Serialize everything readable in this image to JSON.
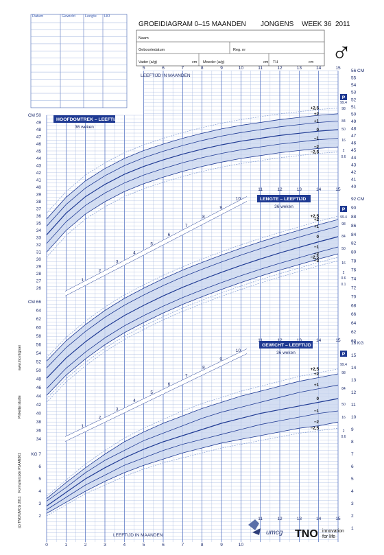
{
  "header": {
    "title": "GROEIDIAGRAM 0–15 MAANDEN",
    "gender": "JONGENS",
    "week": "WEEK 36",
    "year": "2011",
    "gender_symbol": "♂"
  },
  "record_table": {
    "columns": [
      "Datum",
      "Gewicht",
      "Lengte",
      "HO"
    ],
    "rows": 12
  },
  "form": {
    "name_label": "Naam",
    "dob_label": "Geboortedatum",
    "reg_label": "Reg. nr",
    "father_label": "Vader (a/g)",
    "mother_label": "Moeder (a/g)",
    "th_label": "TH",
    "cm_unit": "cm"
  },
  "age_axis_top_label": "LEEFTIJD IN MAANDEN",
  "age_axis_bottom_label": "LEEFTIJD IN MAANDEN",
  "side_texts": {
    "copyright": "(c) TNO/UMCG 2011",
    "formcode": "Formuliercode PJAAN361",
    "study": "Pinkeltje studie",
    "url": "www.tno.nl/groei"
  },
  "logos": {
    "umcg": "umcg",
    "tno": "TNO",
    "tno_tag1": "innovation",
    "tno_tag2": "for life"
  },
  "chart_data": [
    {
      "type": "line",
      "title": "HOOFDOMTREK – LEEFTIJD",
      "subtitle": "36 weken",
      "ylabel": "CM",
      "xlim": [
        0,
        15
      ],
      "ylim": [
        26,
        50
      ],
      "yticks_left": [
        27,
        28,
        29,
        30,
        31,
        32,
        33,
        34,
        35,
        36,
        37,
        38,
        39,
        40,
        41,
        42,
        43,
        44,
        45,
        46,
        47,
        48,
        49,
        50
      ],
      "x": [
        0,
        1,
        2,
        3,
        4,
        5,
        6,
        7,
        8,
        9,
        10,
        11,
        12,
        13,
        14,
        15
      ],
      "series": [
        {
          "sd": "+2,5",
          "values": [
            36.4,
            39.4,
            41.7,
            43.4,
            44.8,
            45.9,
            46.8,
            47.6,
            48.3,
            48.9,
            49.4,
            49.8,
            50.2,
            50.5,
            50.8,
            51.0
          ]
        },
        {
          "sd": "+2",
          "values": [
            35.6,
            38.6,
            40.9,
            42.6,
            44.0,
            45.1,
            46.0,
            46.8,
            47.5,
            48.1,
            48.6,
            49.0,
            49.4,
            49.7,
            50.0,
            50.2
          ]
        },
        {
          "sd": "+1",
          "values": [
            34.6,
            37.6,
            39.9,
            41.6,
            43.0,
            44.1,
            45.0,
            45.8,
            46.5,
            47.1,
            47.6,
            48.0,
            48.4,
            48.7,
            49.0,
            49.2
          ]
        },
        {
          "sd": "0",
          "values": [
            33.4,
            36.4,
            38.7,
            40.4,
            41.8,
            42.9,
            43.8,
            44.6,
            45.3,
            45.9,
            46.4,
            46.8,
            47.2,
            47.5,
            47.8,
            48.0
          ]
        },
        {
          "sd": "−1",
          "values": [
            32.2,
            35.2,
            37.5,
            39.2,
            40.6,
            41.7,
            42.6,
            43.4,
            44.1,
            44.7,
            45.2,
            45.6,
            46.0,
            46.3,
            46.6,
            46.8
          ]
        },
        {
          "sd": "−2",
          "values": [
            31.0,
            34.0,
            36.3,
            38.0,
            39.4,
            40.5,
            41.4,
            42.2,
            42.9,
            43.5,
            44.0,
            44.4,
            44.8,
            45.1,
            45.4,
            45.6
          ]
        },
        {
          "sd": "−2,5",
          "values": [
            30.3,
            33.3,
            35.6,
            37.3,
            38.7,
            39.8,
            40.7,
            41.5,
            42.2,
            42.8,
            43.3,
            43.7,
            44.1,
            44.4,
            44.7,
            44.9
          ]
        }
      ]
    },
    {
      "type": "line",
      "title": "LENGTE – LEEFTIJD",
      "subtitle": "36 weken",
      "ylabel": "CM",
      "xlim": [
        0,
        15
      ],
      "ylim": [
        40,
        92
      ],
      "x": [
        0,
        1,
        2,
        3,
        4,
        5,
        6,
        7,
        8,
        9,
        10,
        11,
        12,
        13,
        14,
        15
      ],
      "series": [
        {
          "sd": "+2,5",
          "values": [
            53.0,
            57.7,
            61.5,
            64.8,
            67.6,
            70.0,
            72.2,
            74.2,
            76.0,
            77.7,
            79.3,
            80.8,
            82.2,
            83.5,
            84.8,
            86.0
          ]
        },
        {
          "sd": "+2",
          "values": [
            52.2,
            56.9,
            60.7,
            64.0,
            66.8,
            69.2,
            71.4,
            73.4,
            75.2,
            76.9,
            78.5,
            80.0,
            81.4,
            82.7,
            84.0,
            85.2
          ]
        },
        {
          "sd": "+1",
          "values": [
            50.6,
            55.3,
            59.1,
            62.4,
            65.2,
            67.6,
            69.8,
            71.8,
            73.6,
            75.3,
            76.9,
            78.4,
            79.8,
            81.1,
            82.4,
            83.6
          ]
        },
        {
          "sd": "0",
          "values": [
            48.2,
            52.9,
            56.7,
            60.0,
            62.8,
            65.2,
            67.4,
            69.4,
            71.2,
            72.9,
            74.5,
            76.0,
            77.4,
            78.7,
            80.0,
            81.2
          ]
        },
        {
          "sd": "−1",
          "values": [
            45.8,
            50.5,
            54.3,
            57.6,
            60.4,
            62.8,
            65.0,
            67.0,
            68.8,
            70.5,
            72.1,
            73.6,
            75.0,
            76.3,
            77.6,
            78.8
          ]
        },
        {
          "sd": "−2",
          "values": [
            44.2,
            48.9,
            52.7,
            56.0,
            58.8,
            61.2,
            63.4,
            65.4,
            67.2,
            68.9,
            70.5,
            72.0,
            73.4,
            74.7,
            76.0,
            77.2
          ]
        },
        {
          "sd": "−2,5",
          "values": [
            43.4,
            48.1,
            51.9,
            55.2,
            58.0,
            60.4,
            62.6,
            64.6,
            66.4,
            68.1,
            69.7,
            71.2,
            72.6,
            73.9,
            75.2,
            76.4
          ]
        },
        {
          "sd": "−3",
          "values": [
            42.6,
            47.3,
            51.1,
            54.4,
            57.2,
            59.6,
            61.8,
            63.8,
            65.6,
            67.3,
            68.9,
            70.4,
            71.8,
            73.1,
            74.4,
            75.6
          ]
        }
      ]
    },
    {
      "type": "line",
      "title": "GEWICHT – LEEFTIJD",
      "subtitle": "36 weken",
      "ylabel": "KG",
      "xlim": [
        0,
        15
      ],
      "ylim": [
        1,
        16
      ],
      "x": [
        0,
        1,
        2,
        3,
        4,
        5,
        6,
        7,
        8,
        9,
        10,
        11,
        12,
        13,
        14,
        15
      ],
      "series": [
        {
          "sd": "+2,5",
          "values": [
            3.6,
            4.9,
            6.2,
            7.3,
            8.3,
            9.1,
            9.8,
            10.5,
            11.1,
            11.6,
            12.1,
            12.5,
            12.9,
            13.3,
            13.6,
            13.9
          ]
        },
        {
          "sd": "+2",
          "values": [
            3.4,
            4.7,
            5.9,
            7.0,
            8.0,
            8.8,
            9.5,
            10.1,
            10.7,
            11.2,
            11.7,
            12.1,
            12.5,
            12.9,
            13.2,
            13.5
          ]
        },
        {
          "sd": "+1",
          "values": [
            3.2,
            4.3,
            5.5,
            6.5,
            7.3,
            8.1,
            8.7,
            9.3,
            9.9,
            10.4,
            10.8,
            11.2,
            11.6,
            12.0,
            12.3,
            12.6
          ]
        },
        {
          "sd": "0",
          "values": [
            2.8,
            3.9,
            5.0,
            5.9,
            6.7,
            7.4,
            8.0,
            8.5,
            9.0,
            9.5,
            9.9,
            10.3,
            10.6,
            10.9,
            11.2,
            11.5
          ]
        },
        {
          "sd": "−1",
          "values": [
            2.5,
            3.5,
            4.5,
            5.3,
            6.1,
            6.7,
            7.3,
            7.8,
            8.2,
            8.6,
            9.0,
            9.4,
            9.7,
            10.0,
            10.3,
            10.5
          ]
        },
        {
          "sd": "−2",
          "values": [
            2.2,
            3.1,
            4.0,
            4.8,
            5.5,
            6.1,
            6.6,
            7.1,
            7.5,
            7.9,
            8.2,
            8.5,
            8.8,
            9.1,
            9.3,
            9.6
          ]
        },
        {
          "sd": "−2,5",
          "values": [
            2.0,
            2.9,
            3.8,
            4.5,
            5.2,
            5.8,
            6.3,
            6.7,
            7.1,
            7.5,
            7.8,
            8.1,
            8.4,
            8.7,
            8.9,
            9.1
          ]
        }
      ]
    }
  ],
  "percentiles": {
    "hc": [
      "99.4",
      "98",
      "84",
      "50",
      "16",
      "2",
      "0.6"
    ],
    "length": [
      "99.4",
      "98",
      "84",
      "50",
      "16",
      "2",
      "0.6",
      "0.1"
    ],
    "weight": [
      "99.4",
      "98",
      "84",
      "50",
      "16",
      "2",
      "0.6"
    ],
    "p_label": "P"
  }
}
